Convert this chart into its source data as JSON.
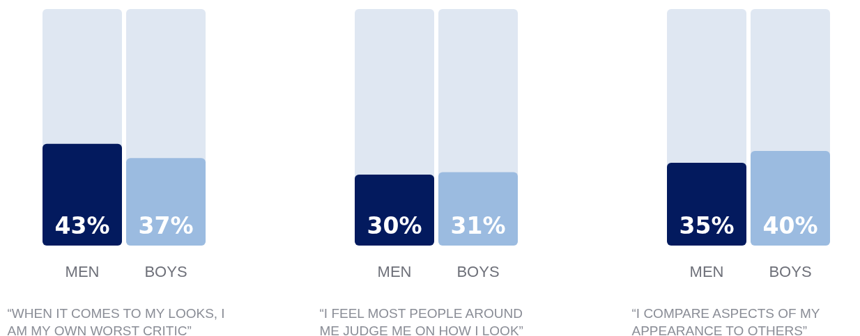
{
  "chart_data": [
    {
      "type": "bar",
      "categories": [
        "MEN",
        "BOYS"
      ],
      "values": [
        43,
        37
      ],
      "colors": [
        "#031a5e",
        "#9bbbe0"
      ],
      "value_labels": [
        "43%",
        "37%"
      ],
      "ylim": [
        0,
        100
      ],
      "tick_labels": "x",
      "xlabel": "“WHEN IT COMES TO MY LOOKS, I AM MY OWN WORST CRITIC”"
    },
    {
      "type": "bar",
      "categories": [
        "MEN",
        "BOYS"
      ],
      "values": [
        30,
        31
      ],
      "colors": [
        "#031a5e",
        "#9bbbe0"
      ],
      "value_labels": [
        "30%",
        "31%"
      ],
      "ylim": [
        0,
        100
      ],
      "tick_labels": "x",
      "xlabel": "“I FEEL MOST PEOPLE AROUND ME JUDGE ME ON HOW I LOOK”"
    },
    {
      "type": "bar",
      "categories": [
        "MEN",
        "BOYS"
      ],
      "values": [
        35,
        40
      ],
      "colors": [
        "#031a5e",
        "#9bbbe0"
      ],
      "value_labels": [
        "35%",
        "40%"
      ],
      "ylim": [
        0,
        100
      ],
      "tick_labels": "x",
      "xlabel": "“I COMPARE ASPECTS OF MY APPEARANCE TO OTHERS”"
    }
  ]
}
